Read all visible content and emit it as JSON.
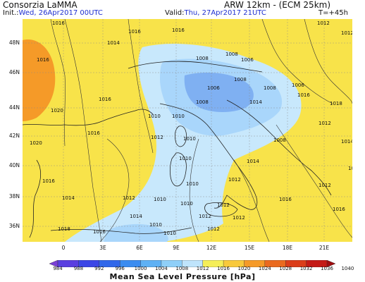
{
  "header": {
    "org": "Consorzia LaMMA",
    "model": "ARW 12km - (ECM 25km)",
    "init_label": "Init.:",
    "init_value": "Wed, 26Apr2017 00UTC",
    "valid_label": "Valid:",
    "valid_value": "Thu, 27Apr2017 21UTC",
    "lead": "T=+45h"
  },
  "map": {
    "lat_labels": [
      "48N",
      "46N",
      "44N",
      "42N",
      "40N",
      "38N",
      "36N"
    ],
    "lon_labels": [
      "0",
      "3E",
      "6E",
      "9E",
      "12E",
      "15E",
      "18E",
      "21E"
    ],
    "isobar_labels": [
      "1016",
      "1016",
      "1016",
      "1012",
      "1012",
      "1014",
      "1016",
      "1020",
      "1016",
      "1010",
      "1008",
      "1008",
      "1006",
      "1008",
      "1006",
      "1008",
      "1010",
      "1012",
      "1010",
      "1014",
      "1016",
      "1018",
      "1020",
      "1016",
      "1014",
      "1016",
      "1010",
      "1010",
      "1012",
      "1012",
      "1012",
      "1010",
      "1010",
      "1012",
      "1014",
      "1016",
      "1018",
      "1016",
      "1012",
      "1008",
      "1006",
      "1008",
      "1012",
      "1014",
      "1018",
      "1016",
      "1012",
      "1010",
      "1010",
      "1012",
      "1014"
    ]
  },
  "legend": {
    "title": "Mean Sea Level Pressure [hPa]",
    "ticks": [
      "984",
      "988",
      "992",
      "996",
      "1000",
      "1004",
      "1008",
      "1012",
      "1016",
      "1020",
      "1024",
      "1028",
      "1032",
      "1036",
      "1040"
    ],
    "colors": [
      "#7a3fd6",
      "#5a3fe0",
      "#3b46e6",
      "#3067ea",
      "#3b8cf0",
      "#5fb1f4",
      "#8fcff8",
      "#bfe4fb",
      "#f5ee58",
      "#f8c93c",
      "#f59a28",
      "#ea6a1f",
      "#db3d1a",
      "#c41a16",
      "#9e0c10"
    ]
  },
  "colors": {
    "low_blue": "#7fb0f2",
    "mid_blue": "#a9d6fb",
    "light_blue": "#c8e8fc",
    "yellow": "#f8e34a",
    "orange": "#f59a28",
    "land_outline": "#222222",
    "header_blue": "#1e2fd0"
  }
}
